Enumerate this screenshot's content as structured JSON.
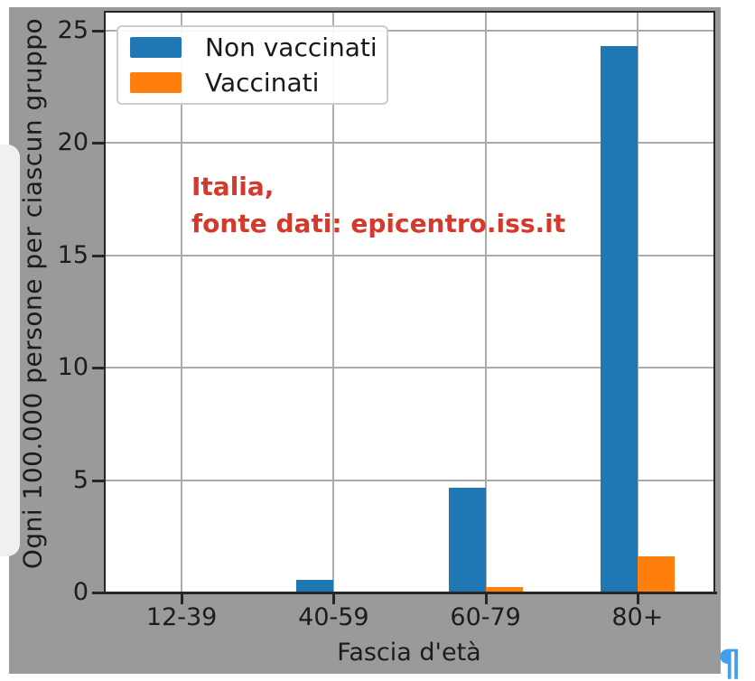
{
  "chart_data": {
    "type": "bar",
    "categories": [
      "12-39",
      "40-59",
      "60-79",
      "80+"
    ],
    "series": [
      {
        "name": "Non vaccinati",
        "color": "#1f77b4",
        "values": [
          0.02,
          0.55,
          4.65,
          24.3
        ]
      },
      {
        "name": "Vaccinati",
        "color": "#ff7f0e",
        "values": [
          0.01,
          0.02,
          0.25,
          1.6
        ]
      }
    ],
    "xlabel": "Fascia d'età",
    "ylabel": "Ogni 100.000 persone per ciascun gruppo",
    "yticks": [
      0,
      5,
      10,
      15,
      20,
      25
    ],
    "ylim": [
      0,
      25.8
    ],
    "grid": true,
    "legend_position": "upper left",
    "annotation": {
      "line1": "Italia,",
      "line2": "fonte dati: epicentro.iss.it",
      "color": "#d4392b"
    }
  },
  "colors": {
    "panel_background": "#9a9a9a",
    "plot_background": "#ffffff",
    "gridline": "#ababab",
    "axis": "#262626"
  },
  "pilcrow": {
    "glyph": "¶",
    "color": "#42a0ea"
  }
}
